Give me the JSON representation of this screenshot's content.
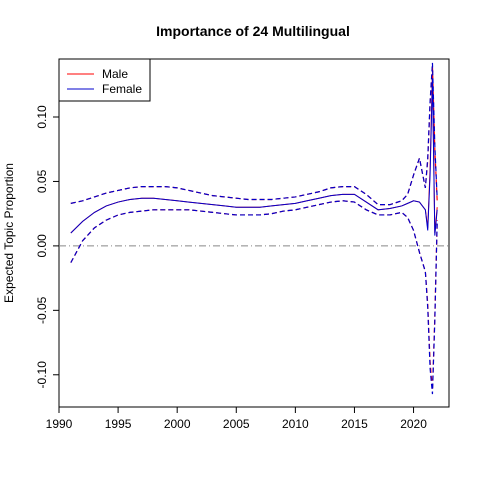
{
  "chart_data": {
    "type": "line",
    "title": "Importance of 24 Multilingual",
    "xlabel": "",
    "ylabel": "Expected Topic Proportion",
    "xlim": [
      1990,
      2023
    ],
    "ylim": [
      -0.125,
      0.145
    ],
    "x_ticks": [
      1990,
      1995,
      2000,
      2005,
      2010,
      2015,
      2020
    ],
    "x_tick_labels": [
      "1990",
      "1995",
      "2000",
      "2005",
      "2010",
      "2015",
      "2020"
    ],
    "y_ticks": [
      -0.1,
      -0.05,
      0.0,
      0.05,
      0.1
    ],
    "y_tick_labels": [
      "-0.10",
      "-0.05",
      "0.00",
      "0.05",
      "0.10"
    ],
    "reference_line": {
      "y": 0,
      "style": "dashdot",
      "color": "#888888"
    },
    "legend": {
      "position": "top-left",
      "entries": [
        "Male",
        "Female"
      ]
    },
    "x": [
      1991,
      1992,
      1993,
      1994,
      1995,
      1996,
      1997,
      1998,
      1999,
      2000,
      2001,
      2002,
      2003,
      2004,
      2005,
      2006,
      2007,
      2008,
      2009,
      2010,
      2011,
      2012,
      2013,
      2014,
      2015,
      2016,
      2017,
      2018,
      2019,
      2019.5,
      2020,
      2020.5,
      2021,
      2021.2,
      2021.4,
      2021.6,
      2021.8,
      2022
    ],
    "series": [
      {
        "name": "Male",
        "color": "#ff0000",
        "mean": [
          0.01,
          0.019,
          0.026,
          0.031,
          0.034,
          0.036,
          0.037,
          0.037,
          0.036,
          0.035,
          0.034,
          0.033,
          0.032,
          0.031,
          0.03,
          0.03,
          0.03,
          0.031,
          0.032,
          0.033,
          0.035,
          0.037,
          0.039,
          0.04,
          0.04,
          0.034,
          0.028,
          0.029,
          0.031,
          0.033,
          0.035,
          0.034,
          0.028,
          0.014,
          0.06,
          0.135,
          0.01,
          0.03
        ],
        "upper": [
          0.033,
          0.035,
          0.038,
          0.041,
          0.043,
          0.045,
          0.046,
          0.046,
          0.046,
          0.045,
          0.043,
          0.041,
          0.039,
          0.038,
          0.037,
          0.036,
          0.036,
          0.036,
          0.037,
          0.038,
          0.04,
          0.042,
          0.045,
          0.046,
          0.046,
          0.04,
          0.032,
          0.032,
          0.035,
          0.04,
          0.055,
          0.068,
          0.045,
          0.066,
          0.11,
          0.14,
          0.075,
          0.035
        ],
        "lower": [
          -0.013,
          0.004,
          0.014,
          0.02,
          0.024,
          0.026,
          0.027,
          0.028,
          0.028,
          0.028,
          0.028,
          0.027,
          0.026,
          0.025,
          0.024,
          0.024,
          0.024,
          0.025,
          0.027,
          0.028,
          0.03,
          0.032,
          0.034,
          0.035,
          0.034,
          0.028,
          0.024,
          0.024,
          0.026,
          0.022,
          0.012,
          -0.005,
          -0.02,
          -0.045,
          -0.09,
          -0.112,
          -0.055,
          0.02
        ]
      },
      {
        "name": "Female",
        "color": "#0000cc",
        "mean": [
          0.01,
          0.019,
          0.026,
          0.031,
          0.034,
          0.036,
          0.037,
          0.037,
          0.036,
          0.035,
          0.034,
          0.033,
          0.032,
          0.031,
          0.03,
          0.03,
          0.03,
          0.031,
          0.032,
          0.033,
          0.035,
          0.037,
          0.039,
          0.04,
          0.04,
          0.034,
          0.028,
          0.029,
          0.031,
          0.033,
          0.035,
          0.034,
          0.028,
          0.012,
          0.055,
          0.13,
          0.008,
          0.028
        ],
        "upper": [
          0.033,
          0.035,
          0.038,
          0.041,
          0.043,
          0.045,
          0.046,
          0.046,
          0.046,
          0.045,
          0.043,
          0.041,
          0.039,
          0.038,
          0.037,
          0.036,
          0.036,
          0.036,
          0.037,
          0.038,
          0.04,
          0.042,
          0.045,
          0.046,
          0.046,
          0.04,
          0.032,
          0.032,
          0.035,
          0.04,
          0.055,
          0.068,
          0.045,
          0.068,
          0.112,
          0.142,
          0.078,
          0.037
        ],
        "lower": [
          -0.013,
          0.004,
          0.014,
          0.02,
          0.024,
          0.026,
          0.027,
          0.028,
          0.028,
          0.028,
          0.028,
          0.027,
          0.026,
          0.025,
          0.024,
          0.024,
          0.024,
          0.025,
          0.027,
          0.028,
          0.03,
          0.032,
          0.034,
          0.035,
          0.034,
          0.028,
          0.024,
          0.024,
          0.026,
          0.022,
          0.012,
          -0.005,
          -0.02,
          -0.048,
          -0.095,
          -0.115,
          -0.058,
          0.018
        ]
      }
    ]
  }
}
